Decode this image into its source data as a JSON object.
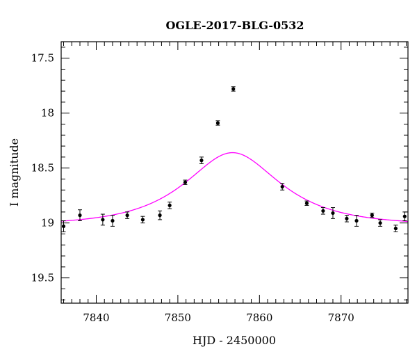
{
  "chart_data": {
    "type": "scatter",
    "title": "OGLE-2017-BLG-0532",
    "xlabel": "HJD - 2450000",
    "ylabel": "I magnitude",
    "xlim": [
      7835.7,
      7878.2
    ],
    "ylim": [
      19.73,
      17.35
    ],
    "y_inverted": true,
    "x_major_ticks": [
      7840,
      7850,
      7860,
      7870
    ],
    "x_minor_step": 1,
    "y_major_ticks": [
      17.5,
      18,
      18.5,
      19,
      19.5
    ],
    "y_minor_step": 0.1,
    "x_tick_labels": [
      "7840",
      "7850",
      "7860",
      "7870"
    ],
    "y_tick_labels": [
      "17.5",
      "18",
      "18.5",
      "19",
      "19.5"
    ],
    "grid": false,
    "series": [
      {
        "kind": "points-with-errorbars",
        "color": "#000000",
        "points": [
          {
            "x": 7836.0,
            "y": 19.03,
            "err": 0.05
          },
          {
            "x": 7838.0,
            "y": 18.93,
            "err": 0.05
          },
          {
            "x": 7840.8,
            "y": 18.97,
            "err": 0.05
          },
          {
            "x": 7842.0,
            "y": 18.98,
            "err": 0.05
          },
          {
            "x": 7843.8,
            "y": 18.93,
            "err": 0.03
          },
          {
            "x": 7845.7,
            "y": 18.97,
            "err": 0.03
          },
          {
            "x": 7847.8,
            "y": 18.93,
            "err": 0.04
          },
          {
            "x": 7849.0,
            "y": 18.84,
            "err": 0.03
          },
          {
            "x": 7850.9,
            "y": 18.63,
            "err": 0.02
          },
          {
            "x": 7852.9,
            "y": 18.43,
            "err": 0.03
          },
          {
            "x": 7854.9,
            "y": 18.09,
            "err": 0.02
          },
          {
            "x": 7856.8,
            "y": 17.78,
            "err": 0.02
          },
          {
            "x": 7862.8,
            "y": 18.67,
            "err": 0.03
          },
          {
            "x": 7865.8,
            "y": 18.82,
            "err": 0.02
          },
          {
            "x": 7867.8,
            "y": 18.89,
            "err": 0.03
          },
          {
            "x": 7869.0,
            "y": 18.91,
            "err": 0.05
          },
          {
            "x": 7870.7,
            "y": 18.96,
            "err": 0.03
          },
          {
            "x": 7871.9,
            "y": 18.98,
            "err": 0.05
          },
          {
            "x": 7873.8,
            "y": 18.93,
            "err": 0.02
          },
          {
            "x": 7874.8,
            "y": 19.0,
            "err": 0.03
          },
          {
            "x": 7876.7,
            "y": 19.05,
            "err": 0.03
          },
          {
            "x": 7877.8,
            "y": 18.94,
            "err": 0.04
          }
        ]
      },
      {
        "kind": "model-curve",
        "color": "#ff00ff",
        "model": {
          "type": "pspl",
          "t0": 7856.7,
          "tE": 9.0,
          "u0": 0.62,
          "baseline_mag": 19.02
        }
      }
    ]
  }
}
